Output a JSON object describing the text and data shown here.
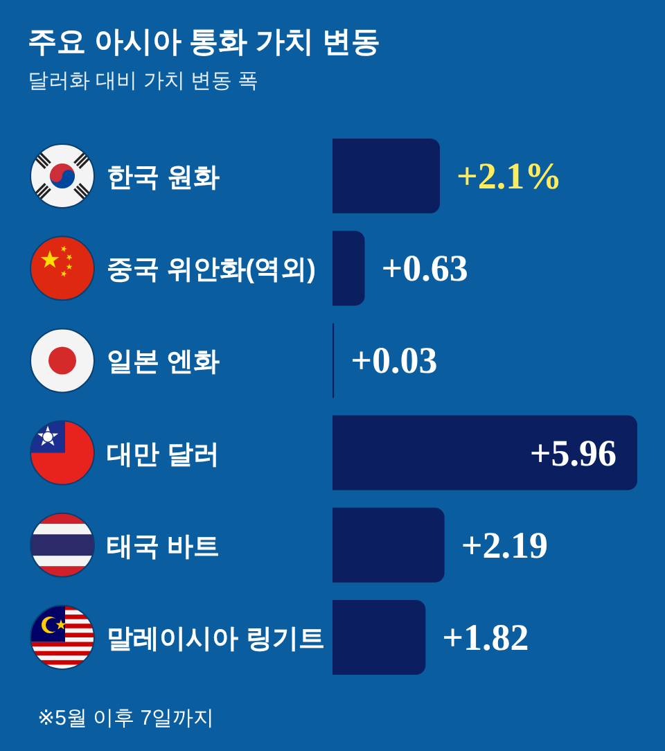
{
  "chart_data": {
    "type": "bar",
    "orientation": "horizontal",
    "title": "주요 아시아 통화 가치 변동",
    "subtitle": "달러화 대비 가치 변동 폭",
    "categories": [
      "한국 원화",
      "중국 위안화(역외)",
      "일본 엔화",
      "대만 달러",
      "태국 바트",
      "말레이시아 링기트"
    ],
    "values": [
      2.1,
      0.63,
      0.03,
      5.96,
      2.19,
      1.82
    ],
    "value_labels": [
      "+2.1%",
      "+0.63",
      "+0.03",
      "+5.96",
      "+2.19",
      "+1.82"
    ],
    "color": "#0b1f60",
    "annotations": [
      "※5월 이후 7일까지"
    ]
  }
}
